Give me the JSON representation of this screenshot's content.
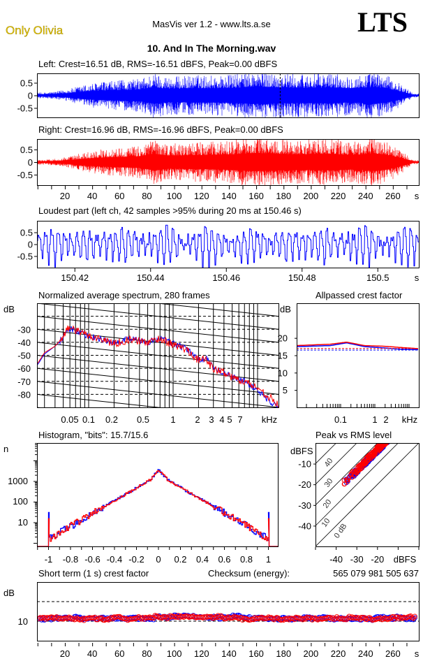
{
  "header": {
    "artist": "Only Olivia",
    "app": "MasVis ver 1.2 - www.lts.a.se",
    "logo": "LTS",
    "file": "10. And In The Morning.wav"
  },
  "colors": {
    "left": "#0000ff",
    "right": "#ff0000",
    "axis": "#000000",
    "artist": "#e6c400"
  },
  "chart_data": [
    {
      "type": "line",
      "title": "Left: Crest=16.51 dB, RMS=-16.51 dBFS, Peak=0.00 dBFS",
      "channel": "left",
      "yticks": [
        "0.5",
        "0",
        "-0.5"
      ],
      "ylim": [
        -1,
        1
      ],
      "duration_s": 277,
      "envelope_per_10s": [
        0.12,
        0.18,
        0.3,
        0.45,
        0.55,
        0.6,
        0.65,
        0.7,
        0.95,
        0.8,
        0.8,
        0.85,
        0.85,
        0.85,
        0.9,
        1.0,
        1.0,
        0.95,
        0.9,
        0.9,
        0.9,
        0.95,
        0.85,
        0.85,
        1.0,
        0.85,
        0.5,
        0.08
      ],
      "marker_s": 150.46
    },
    {
      "type": "line",
      "title": "Right: Crest=16.96 dB, RMS=-16.96 dBFS, Peak=0.00 dBFS",
      "channel": "right",
      "yticks": [
        "0.5",
        "0",
        "-0.5"
      ],
      "ylim": [
        -1,
        1
      ],
      "duration_s": 277,
      "envelope_per_10s": [
        0.1,
        0.15,
        0.25,
        0.4,
        0.5,
        0.55,
        0.6,
        0.65,
        0.95,
        0.75,
        0.75,
        0.8,
        0.8,
        0.85,
        0.9,
        1.0,
        1.0,
        0.95,
        0.9,
        0.9,
        0.9,
        0.95,
        0.85,
        0.85,
        1.0,
        0.85,
        0.5,
        0.08
      ],
      "xticks": [
        "20",
        "40",
        "60",
        "80",
        "100",
        "120",
        "140",
        "160",
        "180",
        "200",
        "220",
        "240",
        "260"
      ],
      "xunit": "s"
    },
    {
      "type": "line",
      "title": "Loudest part (left  ch, 42 samples >95% during 20 ms at 150.46 s)",
      "yticks": [
        "0.5",
        "0",
        "-0.5"
      ],
      "xticks": [
        "150.42",
        "150.44",
        "150.46",
        "150.48",
        "150.5"
      ],
      "xunit": "s",
      "xlim": [
        150.41,
        150.511
      ]
    },
    {
      "type": "line",
      "title": "Normalized average spectrum, 280 frames",
      "ylabel": "dB",
      "yticks": [
        "-30",
        "-40",
        "-50",
        "-60",
        "-70",
        "-80"
      ],
      "ylim": [
        -90,
        -10
      ],
      "xticks": [
        "0.05",
        "0.1",
        "0.2",
        "0.5",
        "1",
        "2",
        "3",
        "4",
        "5",
        "7"
      ],
      "xunit": "kHz",
      "series": [
        {
          "name": "left",
          "points": [
            [
              0.025,
              -57
            ],
            [
              0.03,
              -49
            ],
            [
              0.04,
              -43
            ],
            [
              0.05,
              -37
            ],
            [
              0.055,
              -29
            ],
            [
              0.07,
              -31
            ],
            [
              0.1,
              -35
            ],
            [
              0.15,
              -38
            ],
            [
              0.2,
              -41
            ],
            [
              0.3,
              -37
            ],
            [
              0.5,
              -40
            ],
            [
              0.7,
              -37
            ],
            [
              1,
              -41
            ],
            [
              1.5,
              -46
            ],
            [
              2,
              -53
            ],
            [
              2.5,
              -53
            ],
            [
              3,
              -60
            ],
            [
              4,
              -63
            ],
            [
              5,
              -67
            ],
            [
              7,
              -70
            ],
            [
              10,
              -77
            ],
            [
              15,
              -87
            ],
            [
              18,
              -90
            ]
          ]
        },
        {
          "name": "right",
          "points": [
            [
              0.025,
              -56
            ],
            [
              0.03,
              -48
            ],
            [
              0.04,
              -43
            ],
            [
              0.05,
              -36
            ],
            [
              0.055,
              -29
            ],
            [
              0.07,
              -31
            ],
            [
              0.1,
              -35
            ],
            [
              0.15,
              -38
            ],
            [
              0.2,
              -41
            ],
            [
              0.3,
              -38
            ],
            [
              0.5,
              -40
            ],
            [
              0.7,
              -37
            ],
            [
              1,
              -42
            ],
            [
              1.5,
              -46
            ],
            [
              2,
              -54
            ],
            [
              2.5,
              -53
            ],
            [
              3,
              -61
            ],
            [
              4,
              -63
            ],
            [
              5,
              -67
            ],
            [
              7,
              -70
            ],
            [
              10,
              -75
            ],
            [
              15,
              -84
            ],
            [
              18,
              -89
            ]
          ]
        }
      ]
    },
    {
      "type": "line",
      "title": "Allpassed crest factor",
      "ylabel": "dB",
      "yticks": [
        "20",
        "15",
        "10",
        "5"
      ],
      "ylim": [
        0,
        30
      ],
      "xticks": [
        "0.1",
        "1",
        "2"
      ],
      "xunit": "kHz",
      "series": [
        {
          "name": "left",
          "points": [
            [
              0.005,
              17.5
            ],
            [
              0.05,
              17.8
            ],
            [
              0.15,
              18.6
            ],
            [
              0.5,
              17.5
            ],
            [
              2,
              17.1
            ],
            [
              5,
              16.8
            ],
            [
              20,
              16.6
            ]
          ],
          "reference": 16.51
        },
        {
          "name": "right",
          "points": [
            [
              0.005,
              17.8
            ],
            [
              0.05,
              18.2
            ],
            [
              0.15,
              18.8
            ],
            [
              0.5,
              17.8
            ],
            [
              2,
              17.6
            ],
            [
              5,
              17.3
            ],
            [
              20,
              16.9
            ]
          ],
          "reference": 16.96
        }
      ]
    },
    {
      "type": "line",
      "title": "Histogram, \"bits\": 15.7/15.6",
      "ylabel": "n",
      "yticks": [
        "1000",
        "100",
        "10"
      ],
      "yscale": "log",
      "xticks": [
        "-1",
        "-0.8",
        "-0.6",
        "-0.4",
        "-0.2",
        "0",
        "0.2",
        "0.4",
        "0.6",
        "0.8",
        "1"
      ],
      "center_peak_n": 60000,
      "edge_counts": {
        "left": [
          30,
          15
        ],
        "right": [
          40,
          15
        ]
      }
    },
    {
      "type": "scatter",
      "title": "Peak vs RMS level",
      "ylabel": "dBFS",
      "yticks": [
        "-10",
        "-20",
        "-30",
        "-40"
      ],
      "xticks": [
        "-40",
        "-30",
        "-20"
      ],
      "xunit": "dBFS",
      "xlim": [
        -50,
        0
      ],
      "ylim": [
        -50,
        0
      ],
      "crest_lines": [
        "40",
        "30",
        "20",
        "10",
        "0 dB"
      ],
      "rms_range": [
        -38,
        -12
      ],
      "crest_mean_db": 16.7
    },
    {
      "type": "scatter",
      "title": "Short term (1 s) crest factor",
      "checksum_label": "Checksum (energy):",
      "checksum": "565 079 981 505 637",
      "ylabel": "dB",
      "yticks": [
        "10"
      ],
      "ylim": [
        0,
        30
      ],
      "xticks": [
        "20",
        "40",
        "60",
        "80",
        "100",
        "120",
        "140",
        "160",
        "180",
        "200",
        "220",
        "240",
        "260"
      ],
      "xunit": "s",
      "mean_db": 11.5
    }
  ]
}
